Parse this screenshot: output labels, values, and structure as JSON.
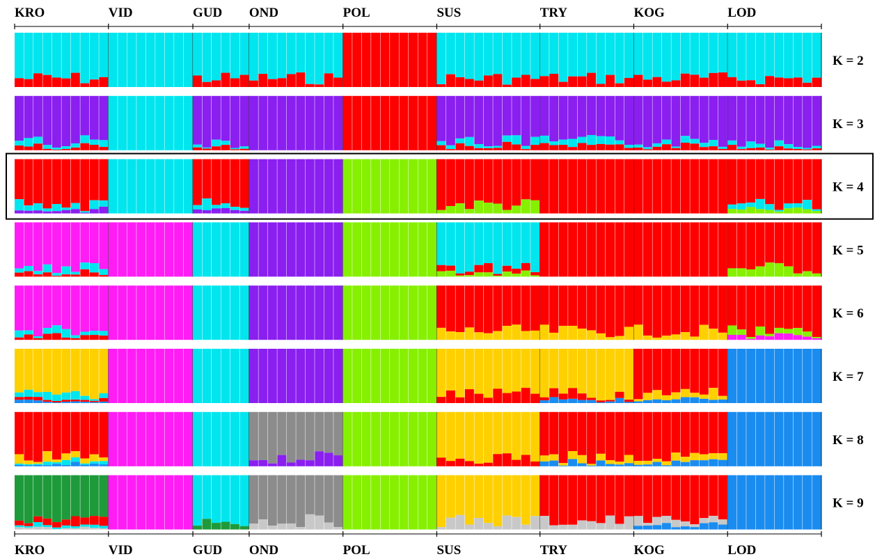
{
  "colors": {
    "cyan": "#00e5ee",
    "red": "#ff0000",
    "purple": "#8a1ff0",
    "green": "#86f000",
    "magenta": "#ff1cf5",
    "yellow": "#ffd000",
    "blue": "#1a8cf0",
    "gray": "#8c8c8c",
    "lightgray": "#c8c8c8",
    "darkgreen": "#1e9a3a"
  },
  "chart_data": {
    "type": "bar",
    "layout": "stacked membership bars per individual, one panel per K",
    "populations": [
      {
        "name": "KRO",
        "n": 10
      },
      {
        "name": "VID",
        "n": 9
      },
      {
        "name": "GUD",
        "n": 6
      },
      {
        "name": "OND",
        "n": 10
      },
      {
        "name": "POL",
        "n": 10
      },
      {
        "name": "SUS",
        "n": 11
      },
      {
        "name": "TRY",
        "n": 10
      },
      {
        "name": "KOG",
        "n": 10
      },
      {
        "name": "LOD",
        "n": 10
      }
    ],
    "highlighted_k": "K = 4",
    "panels": [
      {
        "label": "K = 2",
        "pattern": {
          "KRO": [
            "cyan",
            "red"
          ],
          "VID": [
            "cyan"
          ],
          "GUD": [
            "cyan",
            "red"
          ],
          "OND": [
            "cyan",
            "red"
          ],
          "POL": [
            "red"
          ],
          "SUS": [
            "cyan",
            "red"
          ],
          "TRY": [
            "cyan",
            "red"
          ],
          "KOG": [
            "cyan",
            "red"
          ],
          "LOD": [
            "cyan",
            "red"
          ]
        }
      },
      {
        "label": "K = 3",
        "pattern": {
          "KRO": [
            "purple",
            "cyan",
            "red"
          ],
          "VID": [
            "cyan"
          ],
          "GUD": [
            "purple",
            "cyan",
            "red"
          ],
          "OND": [
            "purple"
          ],
          "POL": [
            "red"
          ],
          "SUS": [
            "purple",
            "cyan",
            "red"
          ],
          "TRY": [
            "purple",
            "cyan",
            "red"
          ],
          "KOG": [
            "purple",
            "cyan",
            "red"
          ],
          "LOD": [
            "purple",
            "cyan",
            "red"
          ]
        }
      },
      {
        "label": "K = 4",
        "pattern": {
          "KRO": [
            "red",
            "cyan",
            "purple"
          ],
          "VID": [
            "cyan"
          ],
          "GUD": [
            "red",
            "cyan",
            "purple"
          ],
          "OND": [
            "purple"
          ],
          "POL": [
            "green"
          ],
          "SUS": [
            "red",
            "green"
          ],
          "TRY": [
            "red"
          ],
          "KOG": [
            "red"
          ],
          "LOD": [
            "red",
            "cyan",
            "green"
          ]
        }
      },
      {
        "label": "K = 5",
        "pattern": {
          "KRO": [
            "magenta",
            "cyan",
            "red"
          ],
          "VID": [
            "magenta"
          ],
          "GUD": [
            "cyan"
          ],
          "OND": [
            "purple"
          ],
          "POL": [
            "green"
          ],
          "SUS": [
            "cyan",
            "red",
            "green"
          ],
          "TRY": [
            "red"
          ],
          "KOG": [
            "red"
          ],
          "LOD": [
            "red",
            "green"
          ]
        }
      },
      {
        "label": "K = 6",
        "pattern": {
          "KRO": [
            "magenta",
            "cyan",
            "red"
          ],
          "VID": [
            "magenta"
          ],
          "GUD": [
            "cyan"
          ],
          "OND": [
            "purple"
          ],
          "POL": [
            "green"
          ],
          "SUS": [
            "red",
            "yellow"
          ],
          "TRY": [
            "red",
            "yellow"
          ],
          "KOG": [
            "red",
            "yellow"
          ],
          "LOD": [
            "red",
            "green",
            "magenta"
          ]
        }
      },
      {
        "label": "K = 7",
        "pattern": {
          "KRO": [
            "yellow",
            "cyan",
            "red",
            "blue"
          ],
          "VID": [
            "magenta"
          ],
          "GUD": [
            "cyan"
          ],
          "OND": [
            "purple"
          ],
          "POL": [
            "green"
          ],
          "SUS": [
            "yellow",
            "red"
          ],
          "TRY": [
            "yellow",
            "red",
            "blue"
          ],
          "KOG": [
            "red",
            "yellow",
            "blue"
          ],
          "LOD": [
            "blue"
          ]
        }
      },
      {
        "label": "K = 8",
        "pattern": {
          "KRO": [
            "red",
            "yellow",
            "cyan",
            "blue"
          ],
          "VID": [
            "magenta"
          ],
          "GUD": [
            "cyan"
          ],
          "OND": [
            "gray",
            "purple"
          ],
          "POL": [
            "green"
          ],
          "SUS": [
            "yellow",
            "red"
          ],
          "TRY": [
            "red",
            "yellow",
            "blue"
          ],
          "KOG": [
            "red",
            "yellow",
            "blue"
          ],
          "LOD": [
            "blue"
          ]
        }
      },
      {
        "label": "K = 9",
        "pattern": {
          "KRO": [
            "darkgreen",
            "red",
            "cyan",
            "lightgray"
          ],
          "VID": [
            "magenta"
          ],
          "GUD": [
            "cyan",
            "darkgreen"
          ],
          "OND": [
            "gray",
            "lightgray"
          ],
          "POL": [
            "green"
          ],
          "SUS": [
            "yellow",
            "lightgray"
          ],
          "TRY": [
            "red",
            "lightgray"
          ],
          "KOG": [
            "red",
            "lightgray",
            "blue"
          ],
          "LOD": [
            "blue"
          ]
        }
      }
    ]
  }
}
